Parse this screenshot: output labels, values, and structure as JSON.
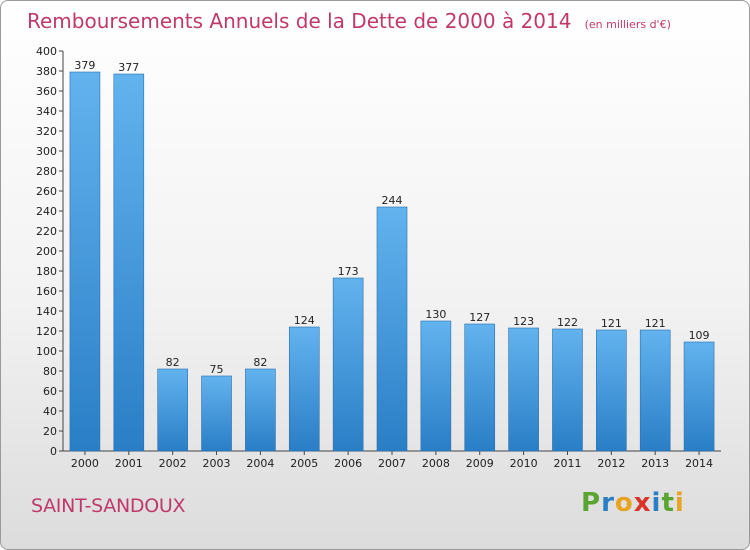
{
  "header": {
    "title": "Remboursements Annuels de la Dette de 2000 à 2014",
    "unit": "(en milliers d'€)"
  },
  "footer": {
    "commune": "SAINT-SANDOUX",
    "brand": "Proxiti"
  },
  "colors": {
    "accent": "#c0396b",
    "bar_top": "#62b3ee",
    "bar_bottom": "#2a7ec6",
    "brand": [
      "#5aa532",
      "#2a7ec6",
      "#e8a31f",
      "#d9352b",
      "#2a7ec6",
      "#5aa532",
      "#e8a31f"
    ]
  },
  "chart_data": {
    "type": "bar",
    "categories": [
      "2000",
      "2001",
      "2002",
      "2003",
      "2004",
      "2005",
      "2006",
      "2007",
      "2008",
      "2009",
      "2010",
      "2011",
      "2012",
      "2013",
      "2014"
    ],
    "values": [
      379,
      377,
      82,
      75,
      82,
      124,
      173,
      244,
      130,
      127,
      123,
      122,
      121,
      121,
      109
    ],
    "ylim": [
      0,
      400
    ],
    "ytick_step": 20,
    "grid": false,
    "legend": "none"
  }
}
